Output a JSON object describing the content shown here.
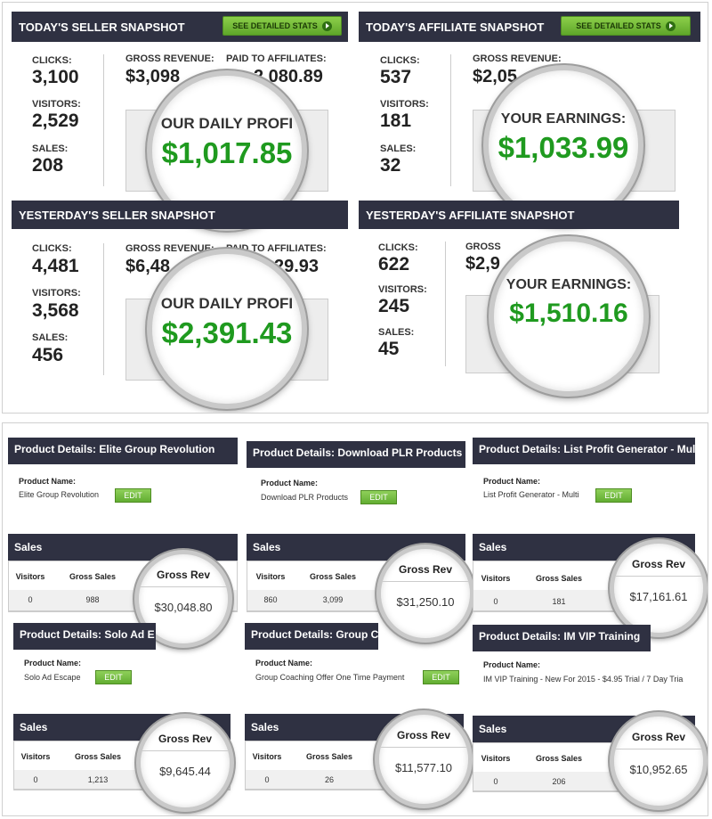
{
  "snapshots": [
    {
      "title": "TODAY'S SELLER SNAPSHOT",
      "button": "SEE DETAILED STATS",
      "clicks_label": "CLICKS:",
      "clicks": "3,100",
      "visitors_label": "VISITORS:",
      "visitors": "2,529",
      "sales_label": "SALES:",
      "sales": "208",
      "gross_label": "GROSS REVENUE:",
      "gross": "$3,098",
      "paid_label": "PAID TO AFFILIATES:",
      "paid": "2,080.89",
      "zoom_caption": "OUR DAILY PROFI",
      "zoom_value": "$1,017.85"
    },
    {
      "title": "TODAY'S AFFILIATE SNAPSHOT",
      "button": "SEE DETAILED STATS",
      "clicks_label": "CLICKS:",
      "clicks": "537",
      "visitors_label": "VISITORS:",
      "visitors": "181",
      "sales_label": "SALES:",
      "sales": "32",
      "gross_label": "GROSS REVENUE:",
      "gross": "$2,05",
      "zoom_caption": "YOUR EARNINGS:",
      "zoom_value": "$1,033.99"
    },
    {
      "title": "YESTERDAY'S SELLER SNAPSHOT",
      "clicks_label": "CLICKS:",
      "clicks": "4,481",
      "visitors_label": "VISITORS:",
      "visitors": "3,568",
      "sales_label": "SALES:",
      "sales": "456",
      "gross_label": "GROSS REVENUE:",
      "gross": "$6,48",
      "paid_label": "PAID TO AFFILIATES:",
      "paid": "29.93",
      "zoom_caption": "OUR DAILY PROFI",
      "zoom_value": "$2,391.43"
    },
    {
      "title": "YESTERDAY'S AFFILIATE SNAPSHOT",
      "clicks_label": "CLICKS:",
      "clicks": "622",
      "visitors_label": "VISITORS:",
      "visitors": "245",
      "sales_label": "SALES:",
      "sales": "45",
      "gross_label": "GROSS REVENUE:",
      "gross": "$2,9",
      "zoom_caption": "YOUR EARNINGS:",
      "zoom_value": "$1,510.16"
    }
  ],
  "products": [
    {
      "header": "Product Details: Elite Group Revolution",
      "name_label": "Product Name:",
      "name": "Elite Group Revolution",
      "edit": "EDIT",
      "sales_header": "Sales",
      "col_visitors": "Visitors",
      "col_gross_sales": "Gross Sales",
      "col_gross_rev": "Gross Rev",
      "visitors": "0",
      "gross_sales": "988",
      "gross_rev": "$30,048.80"
    },
    {
      "header": "Product Details: Download PLR Products",
      "name_label": "Product Name:",
      "name": "Download PLR Products",
      "edit": "EDIT",
      "sales_header": "Sales",
      "col_visitors": "Visitors",
      "col_gross_sales": "Gross Sales",
      "col_gross_rev": "Gross Rev",
      "visitors": "860",
      "gross_sales": "3,099",
      "gross_rev": "$31,250.10"
    },
    {
      "header": "Product Details: List Profit Generator - Mul",
      "name_label": "Product Name:",
      "name": "List Profit Generator - Multi",
      "edit": "EDIT",
      "sales_header": "Sales",
      "col_visitors": "Visitors",
      "col_gross_sales": "Gross Sales",
      "col_gross_rev": "Gross Rev",
      "visitors": "0",
      "gross_sales": "181",
      "gross_rev": "$17,161.61"
    },
    {
      "header": "Product Details: Solo Ad E",
      "name_label": "Product Name:",
      "name": "Solo Ad Escape",
      "edit": "EDIT",
      "sales_header": "Sales",
      "col_visitors": "Visitors",
      "col_gross_sales": "Gross Sales",
      "col_gross_rev": "Gross Rev",
      "visitors": "0",
      "gross_sales": "1,213",
      "gross_rev": "$9,645.44"
    },
    {
      "header": "Product Details: Group Coa",
      "name_label": "Product Name:",
      "name": "Group Coaching Offer One Time Payment",
      "edit": "EDIT",
      "sales_header": "Sales",
      "col_visitors": "Visitors",
      "col_gross_sales": "Gross Sales",
      "col_gross_rev": "Gross Rev",
      "visitors": "0",
      "gross_sales": "26",
      "gross_rev": "$11,577.10"
    },
    {
      "header": "Product Details: IM VIP Training",
      "name_label": "Product Name:",
      "name": "IM VIP Training - New For 2015 - $4.95 Trial / 7 Day Tria",
      "edit": "EDIT",
      "sales_header": "Sales",
      "col_visitors": "Visitors",
      "col_gross_sales": "Gross Sales",
      "col_gross_rev": "Gross Rev",
      "visitors": "0",
      "gross_sales": "206",
      "gross_rev": "$10,952.65"
    }
  ]
}
